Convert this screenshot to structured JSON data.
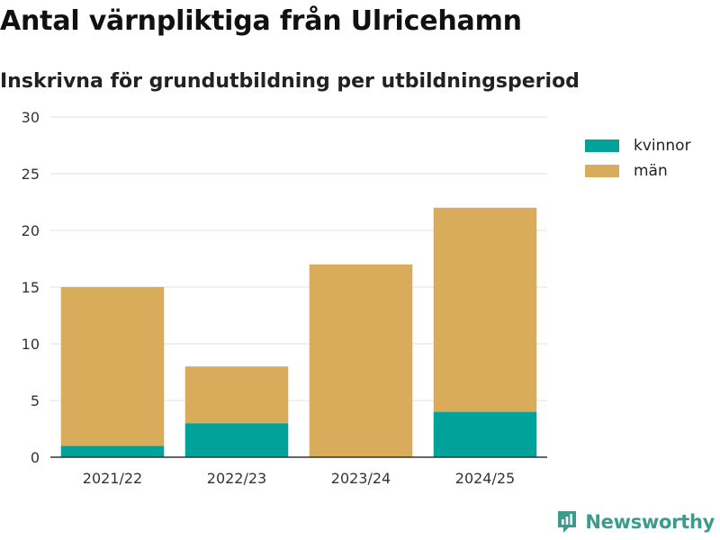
{
  "chart_data": {
    "type": "bar",
    "stacked": true,
    "title": "Antal värnpliktiga från Ulricehamn",
    "subtitle": "Inskrivna för grundutbildning per utbildningsperiod",
    "xlabel": "",
    "ylabel": "",
    "categories": [
      "2021/22",
      "2022/23",
      "2023/24",
      "2024/25"
    ],
    "series": [
      {
        "name": "kvinnor",
        "values": [
          1,
          3,
          0,
          4
        ],
        "color": "#00a29a"
      },
      {
        "name": "män",
        "values": [
          14,
          5,
          17,
          18
        ],
        "color": "#d9ac5b"
      }
    ],
    "ylim": [
      0,
      30
    ],
    "yticks": [
      0,
      5,
      10,
      15,
      20,
      25,
      30
    ],
    "grid": true,
    "legend_position": "right"
  },
  "brand": {
    "name": "Newsworthy",
    "icon": "newsworthy-logo-icon",
    "color": "#3c9a8e"
  }
}
